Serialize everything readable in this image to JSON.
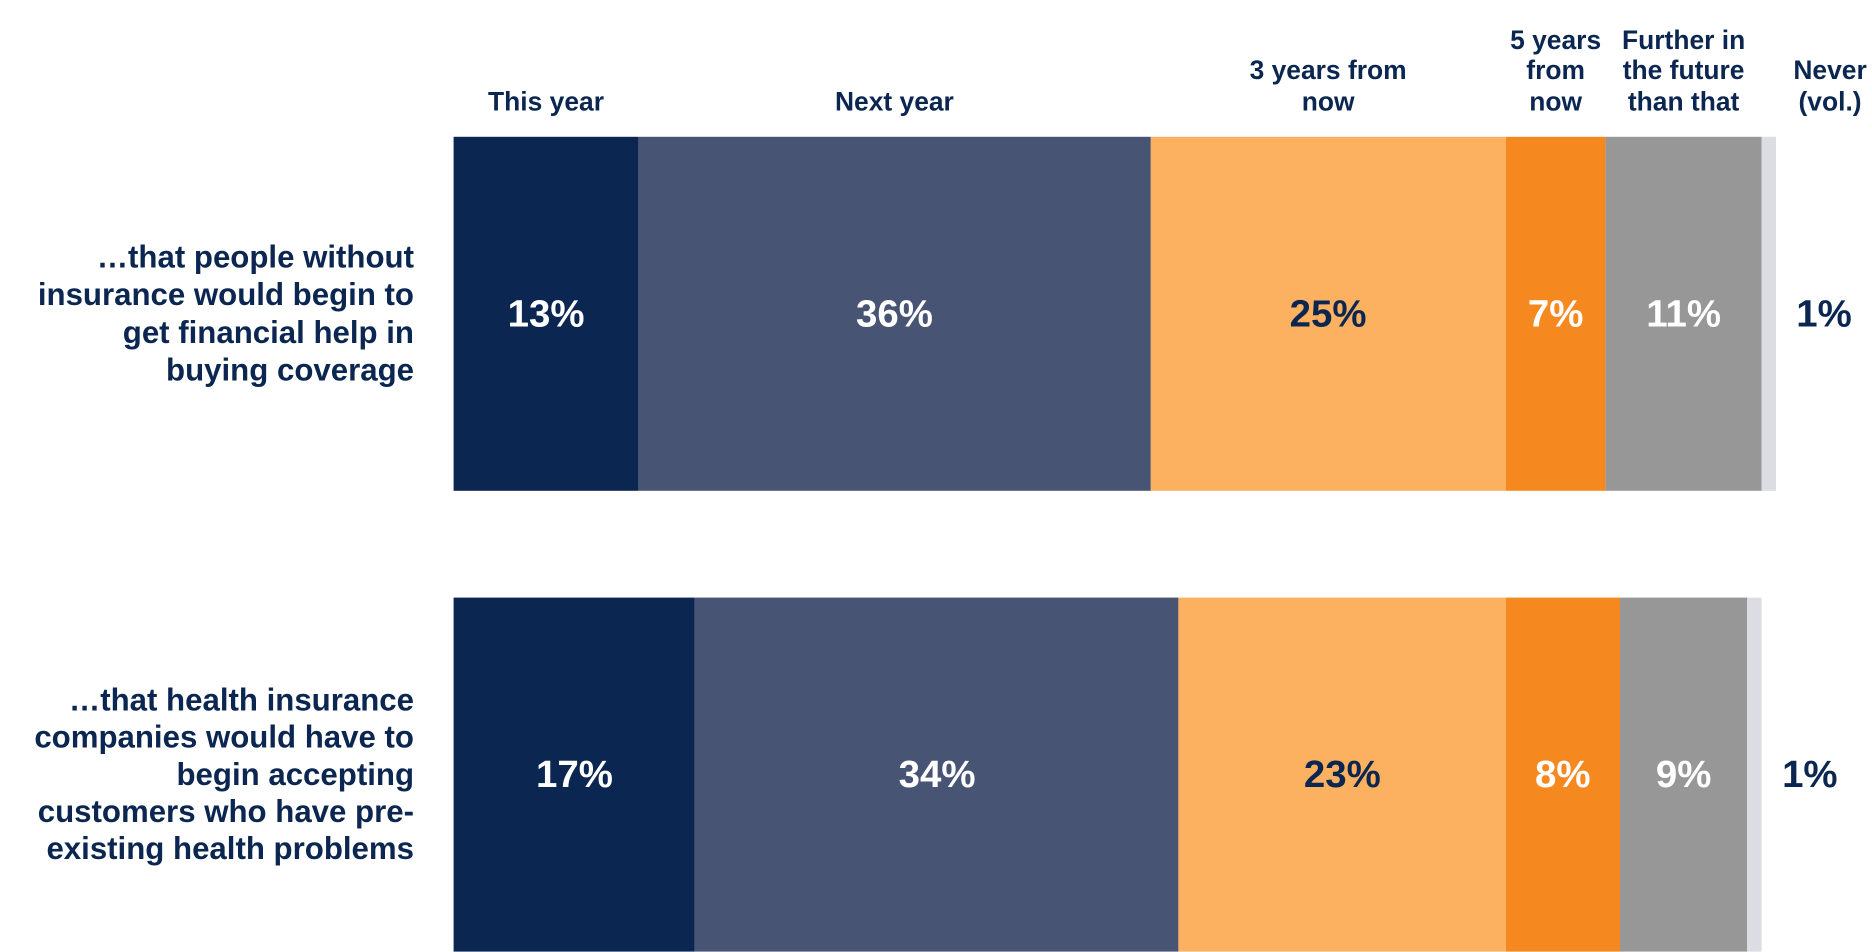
{
  "chart_data": {
    "type": "stacked-bar-horizontal",
    "categories": [
      "…that people without insurance would begin to get financial help in buying coverage",
      "…that health insurance companies would have to begin accepting customers who have pre-existing health problems"
    ],
    "series": [
      {
        "name": "This year",
        "color": "#0b2650",
        "values": [
          13,
          17
        ],
        "value_labels": [
          "13%",
          "17%"
        ]
      },
      {
        "name": "Next year",
        "color": "#485473",
        "values": [
          36,
          34
        ],
        "value_labels": [
          "36%",
          "34%"
        ]
      },
      {
        "name": "3 years from now",
        "color": "#fbb160",
        "values": [
          25,
          23
        ],
        "value_labels": [
          "25%",
          "23%"
        ]
      },
      {
        "name": "5 years from now",
        "color": "#f5891f",
        "values": [
          7,
          8
        ],
        "value_labels": [
          "7%",
          "8%"
        ]
      },
      {
        "name": "Further in the future than that",
        "color": "#979797",
        "values": [
          11,
          9
        ],
        "value_labels": [
          "11%",
          "9%"
        ]
      },
      {
        "name": "Never (vol.)",
        "color": "#dcdce3",
        "values": [
          1,
          1
        ],
        "value_labels": [
          "1%",
          "1%"
        ]
      }
    ]
  }
}
